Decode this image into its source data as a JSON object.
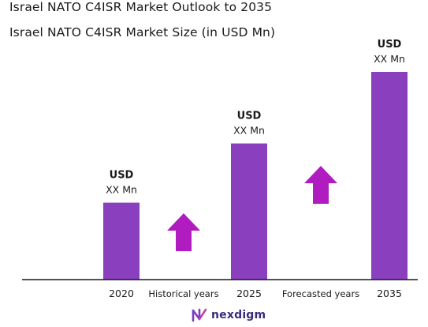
{
  "header": {
    "title": "Israel NATO C4ISR Market Outlook to 2035",
    "subtitle": "Israel NATO C4ISR Market Size (in USD Mn)"
  },
  "chart_data": {
    "type": "bar",
    "title": "Israel NATO C4ISR Market Outlook to 2035",
    "subtitle": "Israel NATO C4ISR Market Size (in USD Mn)",
    "categories": [
      "2020",
      "2025",
      "2035"
    ],
    "values": [
      1,
      1.77,
      2.7
    ],
    "value_note": "relative heights only; values not disclosed",
    "data_labels": [
      {
        "line1": "USD",
        "line2": "XX Mn"
      },
      {
        "line1": "USD",
        "line2": "XX Mn"
      },
      {
        "line1": "USD",
        "line2": "XX Mn"
      }
    ],
    "period_labels": [
      "Historical years",
      "Forecasted years"
    ],
    "ylim": [
      0,
      3
    ],
    "grid": false,
    "bar_color": "#8a3fbf",
    "arrow_color": "#b01cc0"
  },
  "footer": {
    "brand": "nexdigm",
    "brand_color": "#3a2a7a",
    "logo_icon": "nexdigm-logo-icon"
  }
}
